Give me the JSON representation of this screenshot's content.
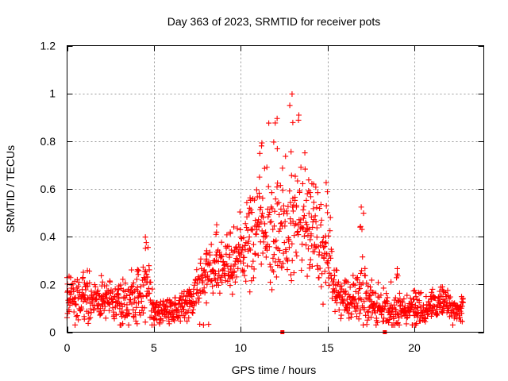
{
  "chart_data": {
    "type": "scatter",
    "title": "Day 363 of 2023, SRMTID for receiver pots",
    "xlabel": "GPS time / hours",
    "ylabel": "SRMTID / TECUs",
    "xlim": [
      0,
      24
    ],
    "ylim": [
      0,
      1.2
    ],
    "x_ticks": [
      0,
      5,
      10,
      15,
      20
    ],
    "x_tick_labels": [
      "0",
      "5",
      "10",
      "15",
      "20"
    ],
    "y_ticks": [
      0,
      0.2,
      0.4,
      0.6,
      0.8,
      1.0,
      1.2
    ],
    "y_tick_labels": [
      "0",
      "0.2",
      "0.4",
      "0.6",
      "0.8",
      "1",
      "1.2"
    ],
    "grid": true,
    "marker": "plus",
    "color": "#ff0000",
    "series": [
      {
        "name": "SRMTID",
        "profile": [
          {
            "hour": 0.0,
            "typical": 0.13,
            "spread": 0.05,
            "peak": 0.24
          },
          {
            "hour": 1.0,
            "typical": 0.14,
            "spread": 0.06,
            "peak": 0.27
          },
          {
            "hour": 2.0,
            "typical": 0.13,
            "spread": 0.05,
            "peak": 0.25
          },
          {
            "hour": 3.0,
            "typical": 0.11,
            "spread": 0.05,
            "peak": 0.2
          },
          {
            "hour": 4.0,
            "typical": 0.14,
            "spread": 0.07,
            "peak": 0.3
          },
          {
            "hour": 4.6,
            "typical": 0.18,
            "spread": 0.09,
            "peak": 0.41
          },
          {
            "hour": 5.0,
            "typical": 0.08,
            "spread": 0.03,
            "peak": 0.12
          },
          {
            "hour": 6.0,
            "typical": 0.09,
            "spread": 0.03,
            "peak": 0.14
          },
          {
            "hour": 7.0,
            "typical": 0.12,
            "spread": 0.04,
            "peak": 0.18
          },
          {
            "hour": 8.0,
            "typical": 0.22,
            "spread": 0.07,
            "peak": 0.36
          },
          {
            "hour": 8.6,
            "typical": 0.28,
            "spread": 0.08,
            "peak": 0.45
          },
          {
            "hour": 9.5,
            "typical": 0.26,
            "spread": 0.07,
            "peak": 0.42
          },
          {
            "hour": 10.5,
            "typical": 0.36,
            "spread": 0.12,
            "peak": 0.62
          },
          {
            "hour": 11.2,
            "typical": 0.45,
            "spread": 0.15,
            "peak": 0.8
          },
          {
            "hour": 12.0,
            "typical": 0.42,
            "spread": 0.16,
            "peak": 0.98
          },
          {
            "hour": 13.0,
            "typical": 0.45,
            "spread": 0.17,
            "peak": 1.03
          },
          {
            "hour": 14.0,
            "typical": 0.42,
            "spread": 0.13,
            "peak": 0.73
          },
          {
            "hour": 15.0,
            "typical": 0.35,
            "spread": 0.11,
            "peak": 0.68
          },
          {
            "hour": 15.5,
            "typical": 0.16,
            "spread": 0.06,
            "peak": 0.3
          },
          {
            "hour": 16.5,
            "typical": 0.12,
            "spread": 0.05,
            "peak": 0.25
          },
          {
            "hour": 17.0,
            "typical": 0.18,
            "spread": 0.1,
            "peak": 0.57
          },
          {
            "hour": 17.6,
            "typical": 0.1,
            "spread": 0.04,
            "peak": 0.2
          },
          {
            "hour": 19.0,
            "typical": 0.09,
            "spread": 0.04,
            "peak": 0.29
          },
          {
            "hour": 20.0,
            "typical": 0.09,
            "spread": 0.04,
            "peak": 0.18
          },
          {
            "hour": 21.0,
            "typical": 0.1,
            "spread": 0.04,
            "peak": 0.18
          },
          {
            "hour": 21.6,
            "typical": 0.11,
            "spread": 0.04,
            "peak": 0.2
          },
          {
            "hour": 22.8,
            "typical": 0.09,
            "spread": 0.03,
            "peak": 0.15
          }
        ],
        "x_range": [
          0,
          22.8
        ]
      },
      {
        "name": "zero-markers",
        "points": [
          {
            "x": 12.4,
            "y": 0
          },
          {
            "x": 18.3,
            "y": 0
          }
        ]
      }
    ]
  }
}
